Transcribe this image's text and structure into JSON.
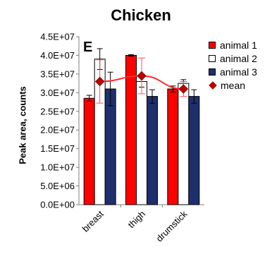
{
  "chart_data": {
    "type": "bar",
    "title": "Chicken",
    "panel_label": "E",
    "ylabel": "Peak area, counts",
    "xlabel": "",
    "categories": [
      "breast",
      "thigh",
      "drumstick"
    ],
    "yticks": [
      "0.0E+00",
      "5.0E+06",
      "1.0E+07",
      "1.5E+07",
      "2.0E+07",
      "2.5E+07",
      "3.0E+07",
      "3.5E+07",
      "4.0E+07",
      "4.5E+07"
    ],
    "ylim": [
      0,
      45000000
    ],
    "grid": false,
    "legend_position": "right",
    "series": [
      {
        "name": "animal 1",
        "color": "#ff0000",
        "values": [
          28500000,
          40000000,
          31000000
        ],
        "errors": [
          800000,
          200000,
          800000
        ]
      },
      {
        "name": "animal 2",
        "color": "#ffffff",
        "values": [
          39000000,
          33000000,
          32500000
        ],
        "errors": [
          2800000,
          1500000,
          1000000
        ]
      },
      {
        "name": "animal 3",
        "color": "#1f2f6e",
        "values": [
          31000000,
          29000000,
          29000000
        ],
        "errors": [
          4500000,
          1800000,
          1800000
        ]
      }
    ],
    "mean": {
      "name": "mean",
      "color": "#c00000",
      "values": [
        33000000,
        34500000,
        31000000
      ],
      "errors": [
        5800000,
        4800000,
        2000000
      ]
    }
  }
}
